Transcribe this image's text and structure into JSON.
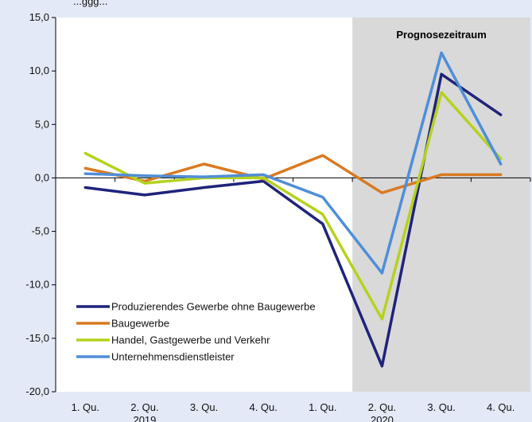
{
  "chart_data": {
    "type": "line",
    "top_caption_fragment": "...ggg...",
    "categories": [
      "1. Qu.",
      "2. Qu.",
      "3. Qu.",
      "4. Qu.",
      "1. Qu.",
      "2. Qu.",
      "3. Qu.",
      "4. Qu."
    ],
    "years": [
      "2019",
      "2020"
    ],
    "forecast_label": "Prognosezeitraum",
    "forecast_start_index": 5,
    "ylim": [
      -20,
      15
    ],
    "yticks": [
      "15,0",
      "10,0",
      "5,0",
      "0,0",
      "-5,0",
      "-10,0",
      "-15,0",
      "-20,0"
    ],
    "ytick_values": [
      15,
      10,
      5,
      0,
      -5,
      -10,
      -15,
      -20
    ],
    "grid": false,
    "legend_position": "bottom-left",
    "series": [
      {
        "name": "Produzierendes Gewerbe ohne Baugewerbe",
        "color": "#1f237a",
        "values": [
          -0.9,
          -1.6,
          -0.9,
          -0.3,
          -4.3,
          -17.6,
          9.7,
          5.9
        ]
      },
      {
        "name": "Baugewerbe",
        "color": "#d97a20",
        "values": [
          0.9,
          -0.3,
          1.3,
          -0.1,
          2.1,
          -1.4,
          0.3,
          0.3
        ]
      },
      {
        "name": "Handel, Gastgewerbe und Verkehr",
        "color": "#b5d21e",
        "values": [
          2.3,
          -0.5,
          0.0,
          0.0,
          -3.4,
          -13.2,
          8.0,
          1.8
        ]
      },
      {
        "name": "Unternehmensdienstleister",
        "color": "#4f8ed8",
        "values": [
          0.4,
          0.2,
          0.1,
          0.3,
          -1.8,
          -8.9,
          11.7,
          1.3
        ]
      }
    ]
  }
}
